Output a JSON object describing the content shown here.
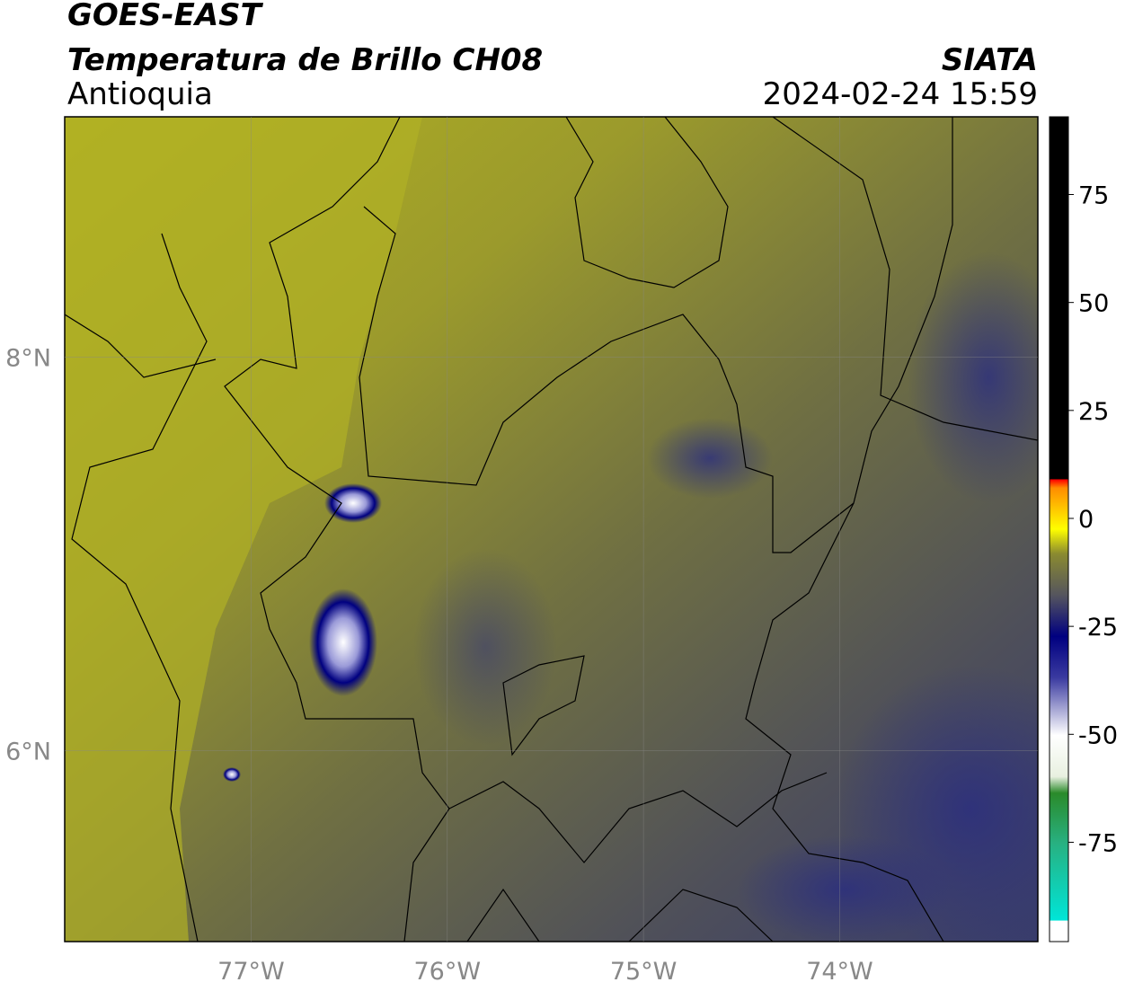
{
  "header": {
    "title": "GOES-EAST",
    "subtitle": "Temperatura de Brillo CH08",
    "region": "Antioquia",
    "agency": "SIATA",
    "timestamp": "2024-02-24 15:59"
  },
  "map": {
    "xlim": [
      -77.95,
      -72.99
    ],
    "ylim": [
      5.03,
      9.22
    ],
    "xticks": [
      {
        "value": -77,
        "label": "77°W"
      },
      {
        "value": -76,
        "label": "76°W"
      },
      {
        "value": -75,
        "label": "75°W"
      },
      {
        "value": -74,
        "label": "74°W"
      }
    ],
    "yticks": [
      {
        "value": 8,
        "label": "8°N"
      },
      {
        "value": 6,
        "label": "6°N"
      }
    ],
    "grid": true
  },
  "colorbar": {
    "range": [
      -98,
      93
    ],
    "ticks": [
      75,
      50,
      25,
      0,
      -25,
      -50,
      -75
    ]
  }
}
